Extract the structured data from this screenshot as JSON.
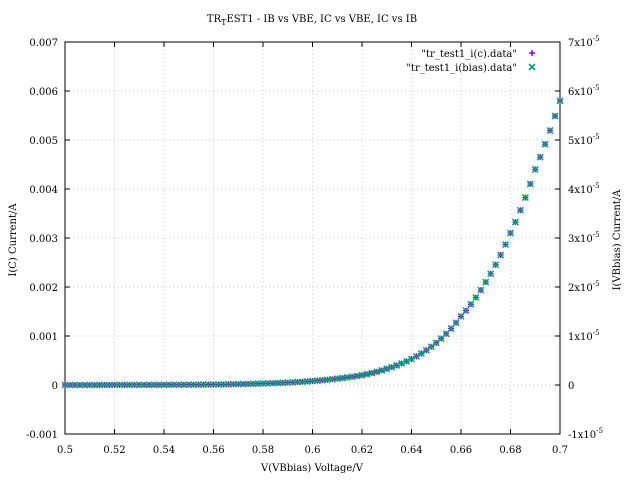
{
  "chart_data": {
    "type": "scatter",
    "title": "TR_TEST1 - IB vs VBE, IC vs VBE, IC vs IB",
    "title_parts": {
      "before_sub": "TR",
      "sub": "T",
      "after_sub": "EST1 - IB vs VBE, IC vs VBE, IC vs IB"
    },
    "xlabel": "V(VBbias) Voltage/V",
    "ylabel": "I(C) Current/A",
    "y2label": "I(VBbias) Current/A",
    "xlim": [
      0.5,
      0.7
    ],
    "ylim": [
      -0.001,
      0.007
    ],
    "y2lim": [
      -1e-05,
      7e-05
    ],
    "grid": true,
    "legend_position": "top-right",
    "x_ticks": [
      "0.5",
      "0.52",
      "0.54",
      "0.56",
      "0.58",
      "0.6",
      "0.62",
      "0.64",
      "0.66",
      "0.68",
      "0.7"
    ],
    "y_ticks": [
      "-0.001",
      "0",
      "0.001",
      "0.002",
      "0.003",
      "0.004",
      "0.005",
      "0.006",
      "0.007"
    ],
    "y2_ticks": [
      {
        "mant": "-1x10",
        "exp": "-5"
      },
      {
        "mant": "0",
        "exp": ""
      },
      {
        "mant": "1x10",
        "exp": "-5"
      },
      {
        "mant": "2x10",
        "exp": "-5"
      },
      {
        "mant": "3x10",
        "exp": "-5"
      },
      {
        "mant": "4x10",
        "exp": "-5"
      },
      {
        "mant": "5x10",
        "exp": "-5"
      },
      {
        "mant": "6x10",
        "exp": "-5"
      },
      {
        "mant": "7x10",
        "exp": "-5"
      }
    ],
    "series": [
      {
        "name": "\"tr_test1_i(c).data\"",
        "axis": "y",
        "marker": "plus",
        "color": "#9400d3",
        "x": [
          0.5,
          0.52,
          0.54,
          0.56,
          0.58,
          0.6,
          0.61,
          0.62,
          0.63,
          0.64,
          0.65,
          0.66,
          0.67,
          0.68,
          0.69,
          0.7
        ],
        "y": [
          0.0,
          2e-06,
          4e-06,
          1e-05,
          3e-05,
          8e-05,
          0.00013,
          0.0002,
          0.00033,
          0.00053,
          0.00086,
          0.0014,
          0.0021,
          0.0031,
          0.0044,
          0.0058
        ]
      },
      {
        "name": "\"tr_test1_i(bias).data\"",
        "axis": "y2",
        "marker": "cross",
        "color": "#009e73",
        "x": [
          0.5,
          0.52,
          0.54,
          0.56,
          0.58,
          0.6,
          0.61,
          0.62,
          0.63,
          0.64,
          0.65,
          0.66,
          0.67,
          0.68,
          0.69,
          0.7
        ],
        "y": [
          0.0,
          2e-08,
          4e-08,
          1e-07,
          3e-07,
          8e-07,
          1.3e-06,
          2e-06,
          3.3e-06,
          5.3e-06,
          8.6e-06,
          1.4e-05,
          2.1e-05,
          3.1e-05,
          4.4e-05,
          5.8e-05
        ]
      }
    ]
  }
}
